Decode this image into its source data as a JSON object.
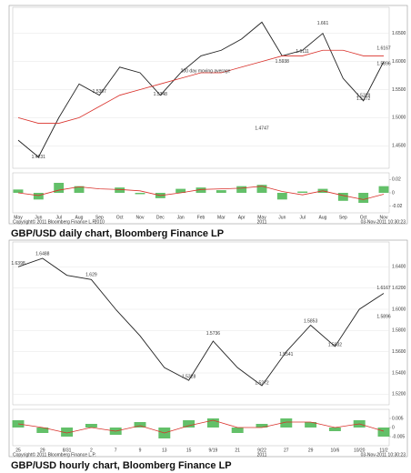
{
  "chart_data": [
    {
      "type": "line",
      "caption": "GBP/USD daily chart, Bloomberg Finance LP",
      "copyright": "Copyright© 2011 Bloomberg Finance L.P.",
      "timestamp": "03-Nov-2011 10:30:23",
      "annotation_text": "200 day moving average",
      "categories": [
        "May",
        "Jun",
        "Jul",
        "Aug",
        "Sep",
        "Oct",
        "Nov",
        "Dec",
        "Jan",
        "Feb",
        "Mar",
        "Apr",
        "May",
        "Jun",
        "Jul",
        "Aug",
        "Sep",
        "Oct",
        "Nov"
      ],
      "years": [
        {
          "text": "2010",
          "at": 4
        },
        {
          "text": "2011",
          "at": 12
        }
      ],
      "series": [
        {
          "name": "GBP/USD",
          "color": "#222222",
          "values": [
            1.46,
            1.43,
            1.5,
            1.56,
            1.54,
            1.59,
            1.58,
            1.54,
            1.58,
            1.61,
            1.62,
            1.64,
            1.67,
            1.61,
            1.62,
            1.65,
            1.57,
            1.53,
            1.6
          ]
        },
        {
          "name": "200 day moving average",
          "color": "#d9302a",
          "values": [
            1.5,
            1.49,
            1.49,
            1.5,
            1.52,
            1.54,
            1.55,
            1.56,
            1.57,
            1.58,
            1.58,
            1.59,
            1.6,
            1.61,
            1.61,
            1.62,
            1.62,
            1.61,
            1.61
          ]
        },
        {
          "name": "indicator",
          "color": "#3cb043",
          "axis": "y2",
          "bars": true,
          "values": [
            0.005,
            -0.01,
            0.015,
            0.01,
            0.0,
            0.008,
            -0.002,
            -0.008,
            0.006,
            0.008,
            0.004,
            0.01,
            0.012,
            -0.01,
            0.002,
            0.006,
            -0.012,
            -0.015,
            0.01
          ]
        },
        {
          "name": "signal",
          "color": "#d9302a",
          "axis": "y2",
          "values": [
            0.0,
            -0.004,
            0.004,
            0.009,
            0.006,
            0.005,
            0.003,
            -0.004,
            0.0,
            0.005,
            0.006,
            0.007,
            0.01,
            0.002,
            -0.003,
            0.003,
            -0.004,
            -0.01,
            -0.002
          ]
        }
      ],
      "annotations": [
        {
          "value": 1.4231,
          "at": 1
        },
        {
          "value": 1.5397,
          "at": 4
        },
        {
          "value": 1.5348,
          "at": 7
        },
        {
          "value": 1.4747,
          "at": 12
        },
        {
          "value": 1.6111,
          "at": 14
        },
        {
          "value": 1.5938,
          "at": 13
        },
        {
          "value": 1.661,
          "at": 15
        },
        {
          "value": 1.5328,
          "at": 17
        },
        {
          "value": 1.5272,
          "at": 17
        },
        {
          "value": 1.6167,
          "at": 18
        },
        {
          "value": 1.5896,
          "at": 18
        }
      ],
      "ylim": [
        1.41,
        1.69
      ],
      "yticks": [
        {
          "value": 1.45,
          "label": "1.4500"
        },
        {
          "value": 1.5,
          "label": "1.5000"
        },
        {
          "value": 1.55,
          "label": "1.5500"
        },
        {
          "value": 1.6,
          "label": "1.6000"
        },
        {
          "value": 1.65,
          "label": "1.6500"
        }
      ],
      "y2lim": [
        -0.03,
        0.03
      ],
      "y2ticks": [
        -0.02,
        0,
        0.02
      ]
    },
    {
      "type": "line",
      "caption": "GBP/USD hourly chart, Bloomberg Finance LP",
      "copyright": "Copyright© 2011 Bloomberg Finance L.P.",
      "timestamp": "03-Nov-2011 10:30:23",
      "categories": [
        "25",
        "29",
        "8/31",
        "2",
        "7",
        "9",
        "13",
        "15",
        "9/19",
        "21",
        "9/22",
        "27",
        "29",
        "10/6",
        "10/20",
        "11/2"
      ],
      "years": [
        {
          "text": "2011",
          "at": 10
        }
      ],
      "series": [
        {
          "name": "GBP/USD",
          "color": "#222222",
          "values": [
            1.64,
            1.648,
            1.632,
            1.628,
            1.6,
            1.575,
            1.545,
            1.533,
            1.57,
            1.545,
            1.528,
            1.56,
            1.585,
            1.565,
            1.6,
            1.615
          ]
        },
        {
          "name": "indicator",
          "color": "#3cb043",
          "axis": "y2",
          "bars": true,
          "values": [
            0.004,
            -0.003,
            -0.005,
            0.002,
            -0.004,
            0.003,
            -0.006,
            0.004,
            0.005,
            -0.003,
            0.002,
            0.005,
            0.003,
            -0.002,
            0.004,
            -0.005
          ]
        },
        {
          "name": "signal",
          "color": "#d9302a",
          "axis": "y2",
          "values": [
            0.002,
            0.0,
            -0.003,
            0.0,
            -0.002,
            0.001,
            -0.003,
            0.001,
            0.004,
            0.0,
            0.0,
            0.003,
            0.003,
            0.0,
            0.002,
            -0.002
          ]
        }
      ],
      "annotations": [
        {
          "value": 1.6488,
          "at": 1
        },
        {
          "value": 1.6398,
          "at": 0
        },
        {
          "value": 1.629,
          "at": 3
        },
        {
          "value": 1.5736,
          "at": 8
        },
        {
          "value": 1.5328,
          "at": 7
        },
        {
          "value": 1.5272,
          "at": 10
        },
        {
          "value": 1.5853,
          "at": 12
        },
        {
          "value": 1.5541,
          "at": 11
        },
        {
          "value": 1.5632,
          "at": 13
        },
        {
          "value": 1.6167,
          "at": 15
        },
        {
          "value": 1.5896,
          "at": 15
        }
      ],
      "ylim": [
        1.51,
        1.66
      ],
      "yticks": [
        {
          "value": 1.52,
          "label": "1.5200"
        },
        {
          "value": 1.54,
          "label": "1.5400"
        },
        {
          "value": 1.56,
          "label": "1.5600"
        },
        {
          "value": 1.58,
          "label": "1.5800"
        },
        {
          "value": 1.6,
          "label": "1.6000"
        },
        {
          "value": 1.62,
          "label": "1.6200"
        },
        {
          "value": 1.64,
          "label": "1.6400"
        }
      ],
      "y2lim": [
        -0.01,
        0.01
      ],
      "y2ticks": [
        -0.005,
        0,
        0.005
      ]
    }
  ]
}
